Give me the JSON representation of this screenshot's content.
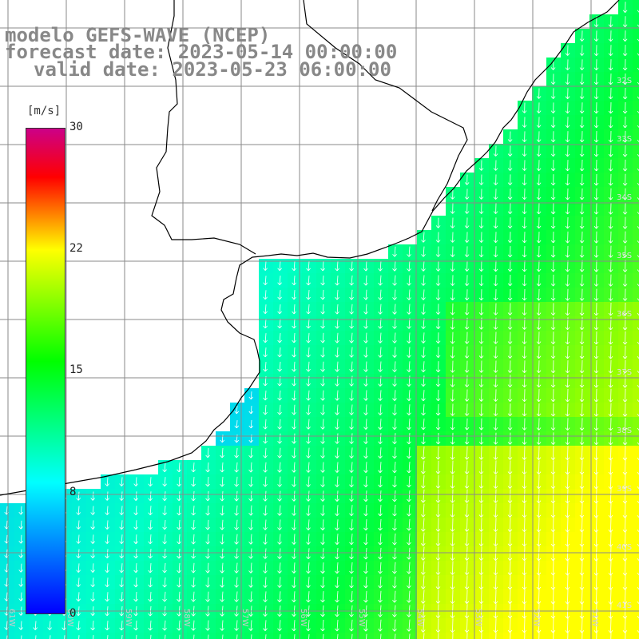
{
  "title": {
    "line1": "modelo GEFS-WAVE (NCEP)",
    "line2": "forecast date: 2023-05-14 00:00:00",
    "line3": "valid date: 2023-05-23 06:00:00"
  },
  "colorbar": {
    "unit": "[m/s]",
    "ticks": [
      "30",
      "22",
      "15",
      "8",
      "0"
    ],
    "colors": [
      "#0000ff",
      "#00ffff",
      "#00ff00",
      "#ffff00",
      "#ff0000",
      "#cc0088"
    ]
  },
  "lat_labels": [
    "32S",
    "33S",
    "34S",
    "35S",
    "36S",
    "37S",
    "38S",
    "39S",
    "40S",
    "41S"
  ],
  "lon_labels": [
    "61W",
    "60W",
    "59W",
    "58W",
    "57W",
    "56W",
    "55W",
    "54W",
    "53W",
    "52W",
    "51W"
  ],
  "colors": {
    "land": "#ffffff",
    "grid": "#8a8a8a",
    "coast": "#000000",
    "arrow": "#ffffff"
  }
}
